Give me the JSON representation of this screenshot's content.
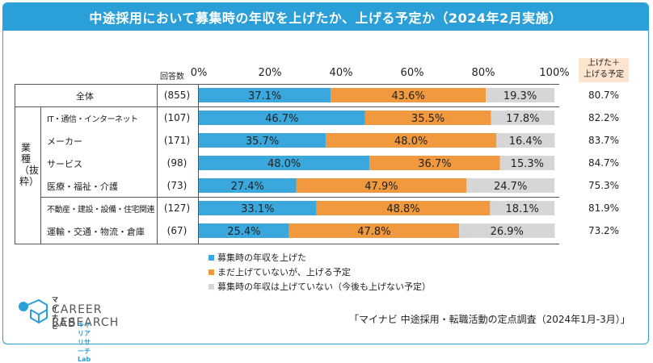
{
  "title": "中途採用において募集時の年収を上げたか、上げる予定か（2024年2月実施）",
  "header": {
    "responses_label": "回答数",
    "sum_label_line1": "上げた＋",
    "sum_label_line2": "上げる予定"
  },
  "group_label": "業種（抜粋）",
  "chart_data": {
    "type": "bar",
    "orientation": "horizontal",
    "stacked": true,
    "x_ticks": [
      "0%",
      "20%",
      "40%",
      "60%",
      "80%",
      "100%"
    ],
    "xlim": [
      0,
      100
    ],
    "categories": [
      "全体",
      "IT・通信・インターネット",
      "メーカー",
      "サービス",
      "医療・福祉・介護",
      "不動産・建設・設備・住宅関連",
      "運輸・交通・物流・倉庫"
    ],
    "responses": [
      "(855)",
      "(107)",
      "(171)",
      "(98)",
      "(73)",
      "(127)",
      "(67)"
    ],
    "series": [
      {
        "name": "募集時の年収を上げた",
        "color": "#3aa8dc",
        "values": [
          37.1,
          46.7,
          35.7,
          48.0,
          27.4,
          33.1,
          25.4
        ],
        "labels": [
          "37.1%",
          "46.7%",
          "35.7%",
          "48.0%",
          "27.4%",
          "33.1%",
          "25.4%"
        ]
      },
      {
        "name": "まだ上げていないが、上げる予定",
        "color": "#f0993f",
        "values": [
          43.6,
          35.5,
          48.0,
          36.7,
          47.9,
          48.8,
          47.8
        ],
        "labels": [
          "43.6%",
          "35.5%",
          "48.0%",
          "36.7%",
          "47.9%",
          "48.8%",
          "47.8%"
        ]
      },
      {
        "name": "募集時の年収は上げていない（今後も上げない予定）",
        "color": "#d6d6d6",
        "values": [
          19.3,
          17.8,
          16.4,
          15.3,
          24.7,
          18.1,
          26.9
        ],
        "labels": [
          "19.3%",
          "17.8%",
          "16.4%",
          "15.3%",
          "24.7%",
          "18.1%",
          "26.9%"
        ]
      }
    ],
    "sum_values": [
      "80.7%",
      "82.2%",
      "83.7%",
      "84.7%",
      "75.3%",
      "81.9%",
      "73.2%"
    ],
    "legend_position": "bottom-center"
  },
  "logo": {
    "brand": "マイナビ",
    "line1": "CAREER RESEARCH",
    "line2": "LAB",
    "sub": "キャリアリサーチLab"
  },
  "source": "「マイナビ 中途採用・転職活動の定点調査（2024年1月-3月）」"
}
